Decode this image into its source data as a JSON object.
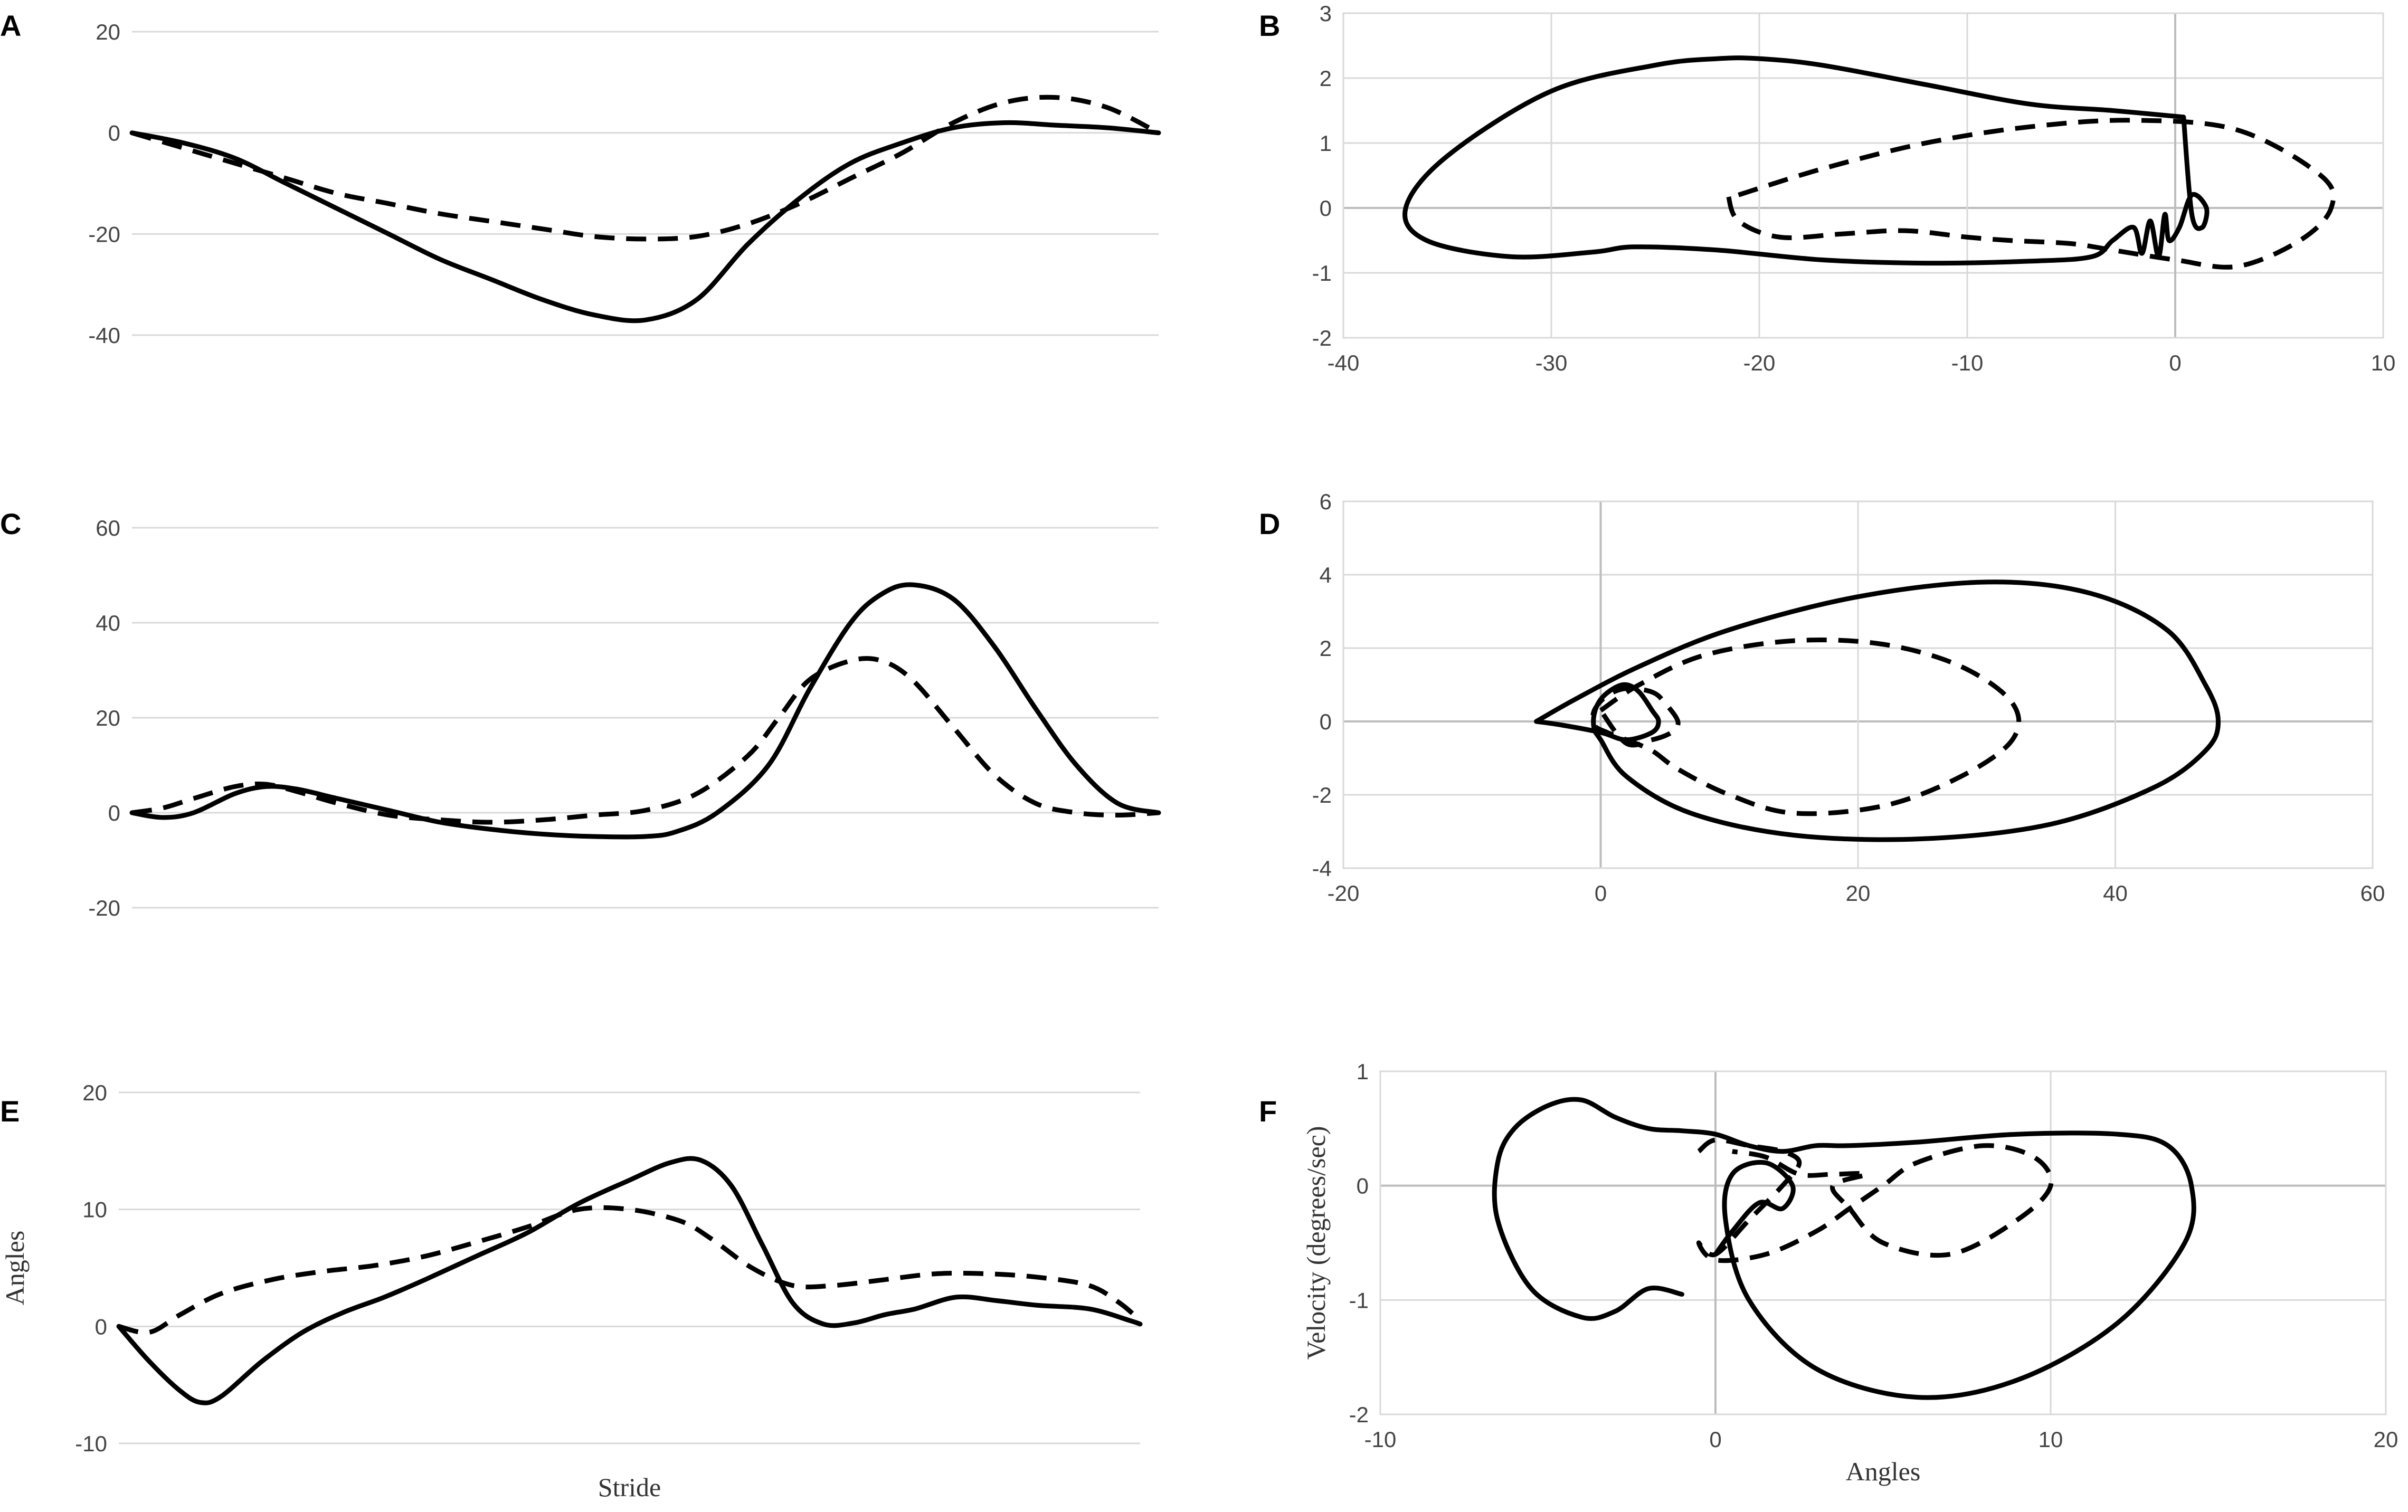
{
  "chart_data": [
    {
      "panel": "A",
      "type": "line",
      "yticks": [
        "20",
        "0",
        "-20",
        "-40"
      ],
      "ylim": [
        -40,
        20
      ],
      "xlim": [
        0,
        100
      ],
      "series": [
        {
          "name": "solid",
          "style": "solid",
          "x": [
            0,
            5,
            10,
            15,
            20,
            25,
            30,
            35,
            40,
            45,
            50,
            55,
            60,
            65,
            70,
            75,
            80,
            85,
            90,
            95,
            100
          ],
          "y": [
            0,
            -2,
            -5,
            -10,
            -15,
            -20,
            -25,
            -29,
            -33,
            -36,
            -37,
            -33,
            -22,
            -13,
            -6,
            -2,
            1,
            2,
            1.5,
            1,
            0
          ]
        },
        {
          "name": "dashed",
          "style": "dashed",
          "x": [
            0,
            5,
            10,
            15,
            20,
            25,
            30,
            35,
            40,
            45,
            50,
            55,
            60,
            65,
            70,
            75,
            80,
            85,
            90,
            95,
            100
          ],
          "y": [
            0,
            -3,
            -6,
            -9,
            -12,
            -14,
            -16,
            -17.5,
            -19,
            -20.5,
            -21,
            -20.5,
            -18,
            -14,
            -9,
            -4,
            2,
            6,
            7,
            5,
            0
          ]
        }
      ]
    },
    {
      "panel": "B",
      "type": "line",
      "xticks": [
        "-40",
        "-30",
        "-20",
        "-10",
        "0",
        "10"
      ],
      "yticks": [
        "3",
        "2",
        "1",
        "0",
        "-1",
        "-2"
      ],
      "xlim": [
        -40,
        10
      ],
      "ylim": [
        -2,
        3
      ],
      "series": [
        {
          "name": "solid",
          "style": "solid",
          "x": [
            0.4,
            -3,
            -7,
            -12,
            -17,
            -20,
            -22,
            -25,
            -30,
            -35,
            -37,
            -36,
            -32,
            -28,
            -26,
            -22,
            -17,
            -12,
            -7,
            -4,
            -3,
            -2,
            -1.6,
            -1.2,
            -0.8,
            -0.5,
            -0.3,
            0.2,
            0.8,
            1.5,
            1.3,
            0.8,
            0.4
          ],
          "y": [
            1.4,
            1.5,
            1.6,
            1.9,
            2.2,
            2.3,
            2.3,
            2.2,
            1.8,
            0.8,
            0,
            -0.5,
            -0.75,
            -0.68,
            -0.6,
            -0.65,
            -0.8,
            -0.85,
            -0.82,
            -0.75,
            -0.5,
            -0.3,
            -0.7,
            -0.2,
            -0.75,
            -0.1,
            -0.5,
            -0.3,
            0.2,
            0,
            -0.3,
            -0.1,
            1.4
          ]
        },
        {
          "name": "dashed",
          "style": "dashed",
          "x": [
            -21,
            -17,
            -12,
            -7,
            -2,
            3,
            7,
            7.5,
            6,
            3,
            0,
            -3,
            -5,
            -8,
            -10,
            -13,
            -16,
            -19,
            -21,
            -21.5
          ],
          "y": [
            0.2,
            0.6,
            1,
            1.25,
            1.35,
            1.2,
            0.5,
            0,
            -0.5,
            -0.9,
            -0.8,
            -0.65,
            -0.55,
            -0.5,
            -0.45,
            -0.35,
            -0.4,
            -0.45,
            -0.2,
            0.2
          ]
        }
      ]
    },
    {
      "panel": "C",
      "type": "line",
      "yticks": [
        "60",
        "40",
        "20",
        "0",
        "-20"
      ],
      "ylim": [
        -20,
        60
      ],
      "xlim": [
        0,
        100
      ],
      "series": [
        {
          "name": "solid",
          "style": "solid",
          "x": [
            0,
            3,
            6,
            10,
            13,
            16,
            20,
            25,
            30,
            35,
            40,
            45,
            50,
            53,
            57,
            62,
            66,
            70,
            73,
            76,
            80,
            84,
            88,
            92,
            96,
            100
          ],
          "y": [
            0,
            -1,
            0,
            4,
            5.5,
            5,
            3,
            0.5,
            -2,
            -3.5,
            -4.5,
            -5,
            -5,
            -4,
            0,
            10,
            26,
            40,
            46,
            48,
            45,
            35,
            22,
            10,
            2,
            0
          ]
        },
        {
          "name": "dashed",
          "style": "dashed",
          "x": [
            0,
            3,
            6,
            10,
            13,
            16,
            20,
            25,
            30,
            35,
            40,
            45,
            50,
            55,
            60,
            63,
            66,
            70,
            73,
            76,
            80,
            84,
            88,
            92,
            96,
            100
          ],
          "y": [
            0,
            1,
            3,
            5.5,
            6,
            4.5,
            2,
            -0.5,
            -1.5,
            -2,
            -1.5,
            -0.5,
            0.5,
            4,
            12,
            20,
            28,
            32,
            32,
            28,
            18,
            8,
            2,
            0,
            -0.5,
            0
          ]
        }
      ]
    },
    {
      "panel": "D",
      "type": "line",
      "xticks": [
        "-20",
        "0",
        "20",
        "40",
        "60"
      ],
      "yticks": [
        "6",
        "4",
        "2",
        "0",
        "-2",
        "-4"
      ],
      "xlim": [
        -20,
        60
      ],
      "ylim": [
        -4,
        6
      ],
      "series": [
        {
          "name": "solid",
          "style": "solid",
          "x": [
            -5,
            -2,
            3,
            10,
            20,
            30,
            38,
            44,
            47,
            48,
            47,
            43,
            35,
            25,
            15,
            7,
            2,
            0,
            -0.5,
            -0.5,
            0,
            1,
            2,
            3,
            4,
            4.5,
            4,
            2,
            0,
            -3,
            -5
          ],
          "y": [
            0,
            0.6,
            1.5,
            2.5,
            3.4,
            3.8,
            3.5,
            2.5,
            1,
            0,
            -0.8,
            -1.8,
            -2.8,
            -3.2,
            -3.1,
            -2.5,
            -1.5,
            -0.5,
            -0.2,
            0.2,
            0.6,
            0.9,
            1,
            0.8,
            0.3,
            0,
            -0.3,
            -0.5,
            -0.3,
            -0.1,
            0
          ]
        },
        {
          "name": "dashed",
          "style": "dashed",
          "x": [
            0,
            3,
            8,
            15,
            22,
            28,
            32,
            32,
            28,
            22,
            15,
            10,
            6,
            4,
            2,
            0.5,
            -0.5,
            -0.5,
            0.5,
            2,
            4,
            5,
            6,
            5.5,
            4,
            2,
            0
          ],
          "y": [
            0.3,
            1,
            1.8,
            2.2,
            2.1,
            1.5,
            0.5,
            -0.5,
            -1.5,
            -2.3,
            -2.5,
            -2,
            -1.3,
            -0.8,
            -0.5,
            -0.3,
            -0.1,
            0.3,
            0.7,
            0.9,
            0.8,
            0.5,
            0,
            -0.3,
            -0.5,
            -0.6,
            0.3
          ]
        }
      ]
    },
    {
      "panel": "E",
      "type": "line",
      "yticks": [
        "20",
        "10",
        "0",
        "-10"
      ],
      "ylim": [
        -10,
        20
      ],
      "xlim": [
        0,
        100
      ],
      "xlabel": "Stride",
      "ylabel": "Angles",
      "series": [
        {
          "name": "solid",
          "style": "solid",
          "x": [
            0,
            3,
            6,
            8,
            10,
            14,
            18,
            22,
            26,
            30,
            35,
            40,
            45,
            50,
            54,
            57,
            60,
            63,
            66,
            69,
            72,
            75,
            78,
            82,
            86,
            90,
            95,
            99,
            100
          ],
          "y": [
            0,
            -3,
            -5.5,
            -6.5,
            -6,
            -3,
            -0.5,
            1.2,
            2.5,
            4,
            6,
            8,
            10.5,
            12.5,
            14,
            14.2,
            12,
            7,
            2,
            0.2,
            0.3,
            1,
            1.5,
            2.5,
            2.2,
            1.8,
            1.5,
            0.5,
            0.2
          ]
        },
        {
          "name": "dashed",
          "style": "dashed",
          "x": [
            0,
            3,
            6,
            10,
            15,
            20,
            25,
            30,
            35,
            40,
            45,
            50,
            55,
            58,
            62,
            66,
            70,
            75,
            80,
            85,
            90,
            95,
            98,
            100
          ],
          "y": [
            0,
            -0.5,
            1,
            2.8,
            4,
            4.7,
            5.2,
            6,
            7.2,
            8.5,
            10,
            10,
            9,
            7.5,
            5,
            3.5,
            3.5,
            4,
            4.5,
            4.5,
            4.2,
            3.5,
            2,
            0.5
          ]
        }
      ]
    },
    {
      "panel": "F",
      "type": "line",
      "xticks": [
        "-10",
        "0",
        "10",
        "20"
      ],
      "yticks": [
        "1",
        "0",
        "-1",
        "-2"
      ],
      "xlim": [
        -10,
        20
      ],
      "ylim": [
        -2,
        1
      ],
      "xlabel": "Angles",
      "ylabel": "Velocity (degrees/sec)",
      "series": [
        {
          "name": "solid",
          "style": "solid",
          "x": [
            -1,
            -2,
            -3,
            -4,
            -5.5,
            -6.5,
            -6.5,
            -6,
            -5,
            -4,
            -3,
            -2,
            -1,
            0,
            1,
            2,
            3,
            4,
            6,
            9,
            12,
            13.5,
            14.2,
            14,
            12,
            9,
            6,
            3,
            1,
            0.3,
            0.5,
            1.5,
            2.3,
            2,
            1.3,
            0.5,
            0
          ],
          "y": [
            -0.95,
            -0.9,
            -1.1,
            -1.15,
            -0.9,
            -0.3,
            0.2,
            0.5,
            0.7,
            0.75,
            0.6,
            0.5,
            0.48,
            0.45,
            0.35,
            0.3,
            0.35,
            0.35,
            0.38,
            0.45,
            0.45,
            0.35,
            0,
            -0.5,
            -1.2,
            -1.7,
            -1.85,
            -1.6,
            -1,
            -0.3,
            0.1,
            0.2,
            0,
            -0.2,
            -0.15,
            -0.4,
            -0.6
          ]
        },
        {
          "name": "dashed",
          "style": "dashed",
          "x": [
            -0.5,
            0,
            1,
            2,
            2.5,
            2,
            1,
            0,
            -0.5,
            0,
            1.5,
            3,
            4,
            5,
            6,
            8,
            9.5,
            10,
            9,
            7,
            5,
            4,
            3.5,
            4.5,
            3.5,
            2.5,
            1.5,
            0.5
          ],
          "y": [
            0.3,
            0.4,
            0.35,
            0.3,
            0.2,
            0,
            -0.3,
            -0.6,
            -0.5,
            -0.65,
            -0.6,
            -0.4,
            -0.2,
            0,
            0.2,
            0.35,
            0.25,
            0,
            -0.3,
            -0.6,
            -0.5,
            -0.2,
            0,
            0.1,
            0.1,
            0.1,
            0.25,
            0.3
          ]
        }
      ]
    }
  ]
}
